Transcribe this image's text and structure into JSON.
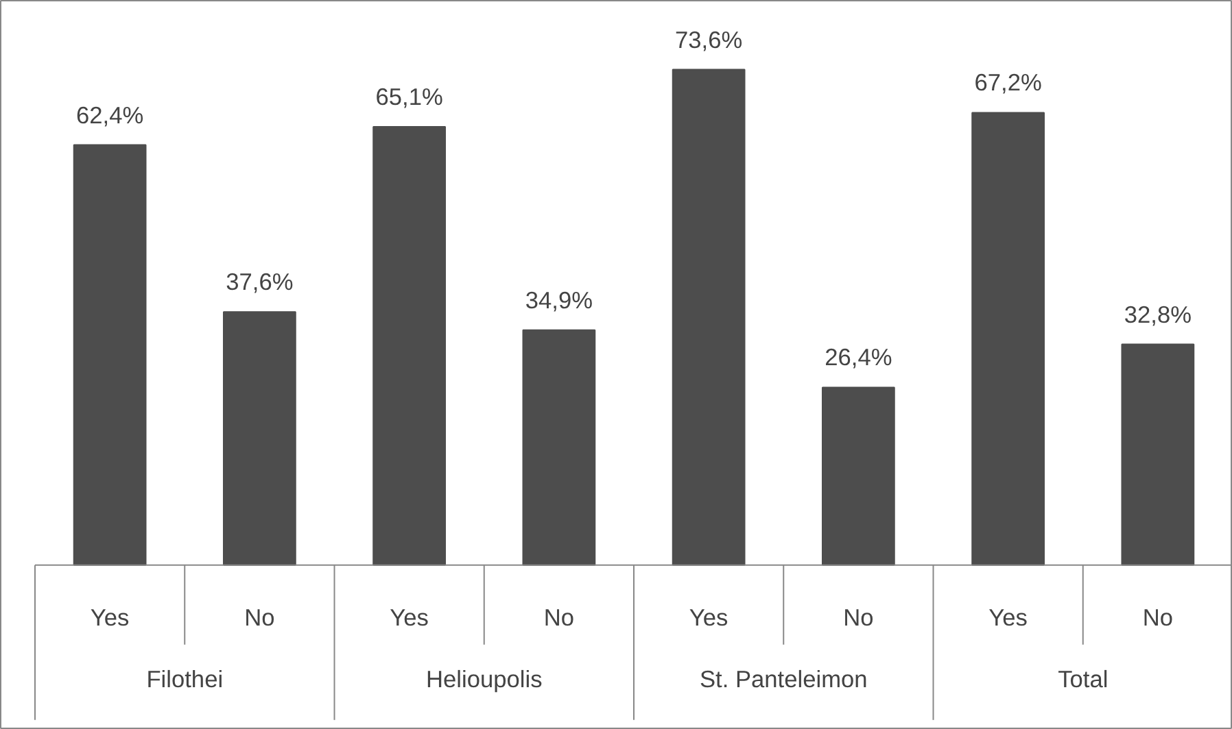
{
  "chart_data": {
    "type": "bar",
    "categories": [
      "Yes",
      "No",
      "Yes",
      "No",
      "Yes",
      "No",
      "Yes",
      "No"
    ],
    "values": [
      62.4,
      37.6,
      65.1,
      34.9,
      73.6,
      26.4,
      67.2,
      32.8
    ],
    "value_labels": [
      "62,4%",
      "37,6%",
      "65,1%",
      "34,9%",
      "73,6%",
      "26,4%",
      "67,2%",
      "32,8%"
    ],
    "color": "#4d4d4d",
    "annotations": [
      "Filothei",
      "Helioupolis",
      "St. Panteleimon",
      "Total"
    ],
    "grid": false
  }
}
